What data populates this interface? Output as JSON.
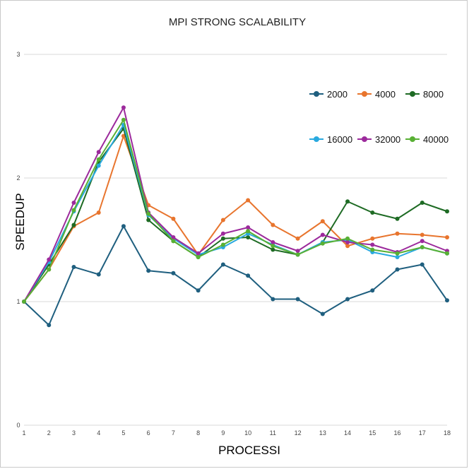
{
  "chart_data": {
    "type": "line",
    "title": "MPI STRONG SCALABILITY",
    "xlabel": "PROCESSI",
    "ylabel": "SPEEDUP",
    "x": [
      1,
      2,
      3,
      4,
      5,
      6,
      7,
      8,
      9,
      10,
      11,
      12,
      13,
      14,
      15,
      16,
      17,
      18
    ],
    "xlim": [
      1,
      18
    ],
    "ylim": [
      0,
      3
    ],
    "y_ticks": [
      0,
      1,
      2,
      3
    ],
    "grid": true,
    "legend": "top-right",
    "series": [
      {
        "name": "2000",
        "color": "#1f5f7f",
        "values": [
          1.0,
          0.81,
          1.28,
          1.22,
          1.61,
          1.25,
          1.23,
          1.09,
          1.3,
          1.21,
          1.02,
          1.02,
          0.9,
          1.02,
          1.09,
          1.26,
          1.3,
          1.01
        ]
      },
      {
        "name": "4000",
        "color": "#e8752e",
        "values": [
          1.0,
          1.26,
          1.61,
          1.72,
          2.34,
          1.78,
          1.67,
          1.38,
          1.66,
          1.82,
          1.62,
          1.51,
          1.65,
          1.45,
          1.51,
          1.55,
          1.54,
          1.52
        ]
      },
      {
        "name": "8000",
        "color": "#1e6b24",
        "values": [
          1.0,
          1.3,
          1.62,
          2.13,
          2.4,
          1.66,
          1.49,
          1.36,
          1.51,
          1.52,
          1.42,
          1.38,
          1.48,
          1.81,
          1.72,
          1.67,
          1.8,
          1.73
        ]
      },
      {
        "name": "16000",
        "color": "#29a9df",
        "values": [
          1.0,
          1.32,
          1.73,
          2.1,
          2.43,
          1.7,
          1.51,
          1.38,
          1.44,
          1.55,
          1.46,
          1.38,
          1.48,
          1.5,
          1.4,
          1.36,
          1.44,
          1.39
        ]
      },
      {
        "name": "32000",
        "color": "#9c2a9c",
        "values": [
          1.0,
          1.34,
          1.8,
          2.21,
          2.57,
          1.72,
          1.52,
          1.39,
          1.55,
          1.6,
          1.48,
          1.41,
          1.54,
          1.48,
          1.46,
          1.4,
          1.49,
          1.41
        ]
      },
      {
        "name": "40000",
        "color": "#58b034",
        "values": [
          1.0,
          1.26,
          1.74,
          2.15,
          2.47,
          1.71,
          1.49,
          1.36,
          1.46,
          1.57,
          1.45,
          1.38,
          1.47,
          1.51,
          1.42,
          1.39,
          1.44,
          1.39
        ]
      }
    ]
  }
}
